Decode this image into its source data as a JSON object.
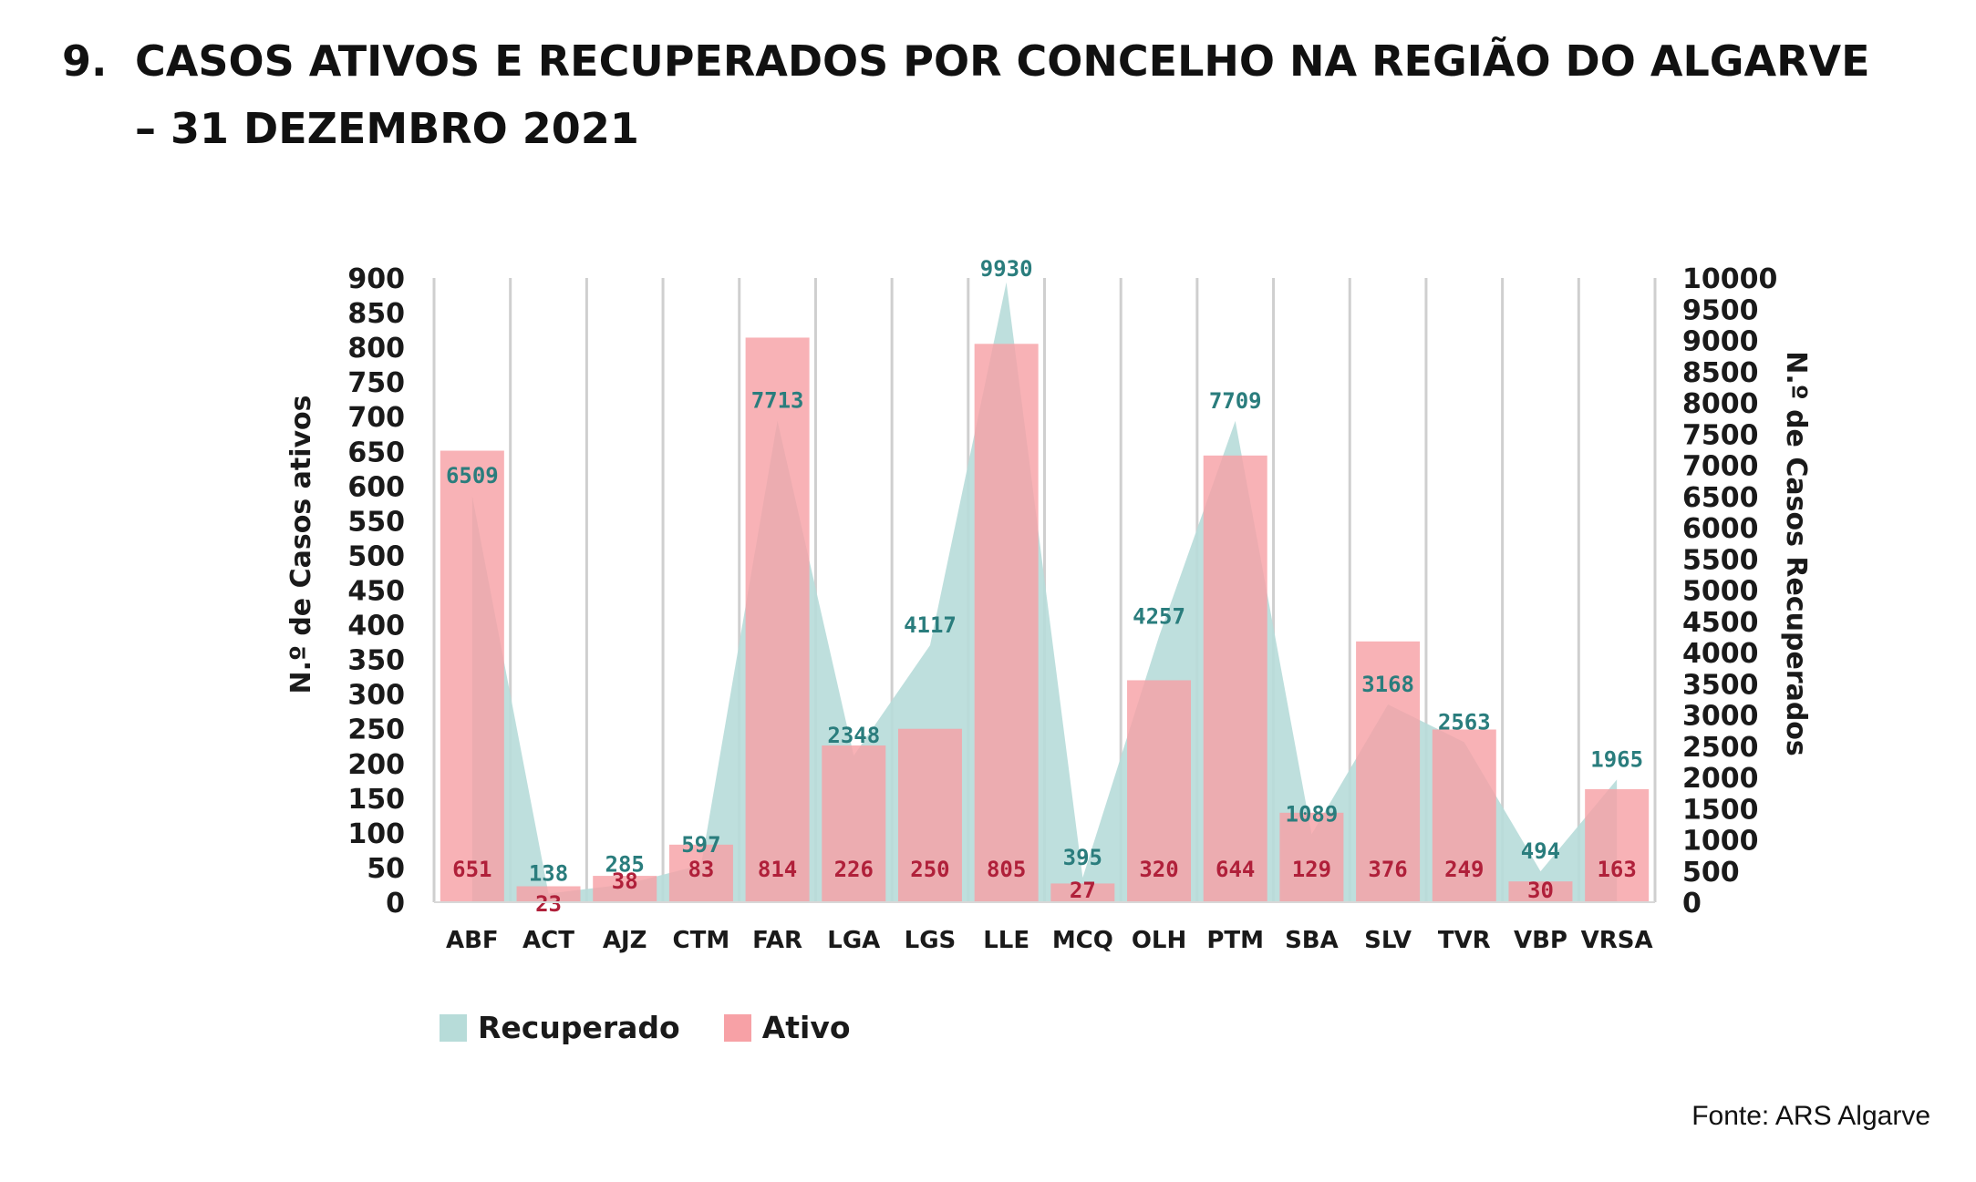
{
  "title": {
    "number": "9.",
    "line1": "CASOS ATIVOS E RECUPERADOS POR CONCELHO NA REGIÃO DO ALGARVE",
    "line2": "– 31 DEZEMBRO 2021"
  },
  "source": "Fonte: ARS Algarve",
  "colors": {
    "recuperado": "#b7dcd9",
    "ativo": "#f7a1a6",
    "recuperado_label": "#2a7d7d",
    "ativo_label": "#b0203a",
    "grid": "#cfcfcf"
  },
  "chart_data": {
    "type": "bar",
    "categories": [
      "ABF",
      "ACT",
      "AJZ",
      "CTM",
      "FAR",
      "LGA",
      "LGS",
      "LLE",
      "MCQ",
      "OLH",
      "PTM",
      "SBA",
      "SLV",
      "TVR",
      "VBP",
      "VRSA"
    ],
    "series": [
      {
        "name": "Recuperado",
        "chart_kind": "area",
        "axis": "right",
        "values": [
          6509,
          138,
          285,
          597,
          7713,
          2348,
          4117,
          9930,
          395,
          4257,
          7709,
          1089,
          3168,
          2563,
          494,
          1965
        ]
      },
      {
        "name": "Ativo",
        "chart_kind": "bar",
        "axis": "left",
        "values": [
          651,
          23,
          38,
          83,
          814,
          226,
          250,
          805,
          27,
          320,
          644,
          129,
          376,
          249,
          30,
          163
        ]
      }
    ],
    "ylabel_left": "N.º de Casos ativos",
    "ylabel_right": "N.º de Casos Recuperados",
    "ylim_left": [
      0,
      900
    ],
    "ylim_right": [
      0,
      10000
    ],
    "yticks_left": [
      "900",
      "850",
      "800",
      "750",
      "700",
      "650",
      "600",
      "550",
      "500",
      "450",
      "400",
      "350",
      "300",
      "250",
      "200",
      "150",
      "100",
      "50",
      "0"
    ],
    "yticks_right": [
      "10000",
      "9500",
      "9000",
      "8500",
      "8000",
      "7500",
      "7000",
      "6500",
      "6000",
      "5500",
      "5000",
      "4500",
      "4000",
      "3500",
      "3000",
      "2500",
      "2000",
      "1500",
      "1000",
      "500",
      "0"
    ],
    "grid": "vertical",
    "legend_position": "bottom-left"
  }
}
